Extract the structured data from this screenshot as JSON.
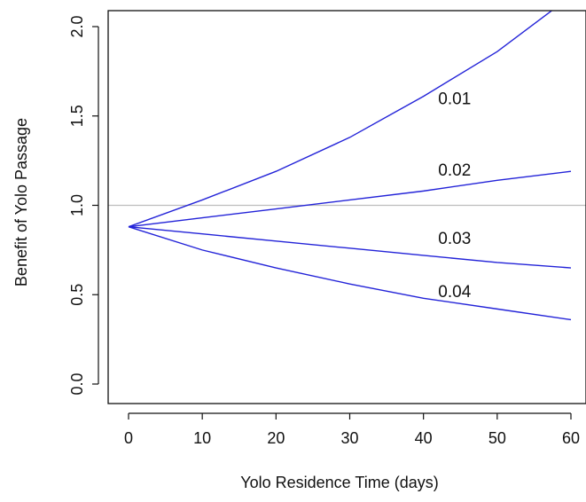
{
  "chart_data": {
    "type": "line",
    "title": "",
    "xlabel": "Yolo Residence Time (days)",
    "ylabel": "Benefit of Yolo Passage",
    "xlim": [
      0,
      60
    ],
    "ylim": [
      0,
      2
    ],
    "xticks": [
      0,
      10,
      20,
      30,
      40,
      50,
      60
    ],
    "yticks": [
      "0.0",
      "0.5",
      "1.0",
      "1.5",
      "2.0"
    ],
    "reference_line": {
      "y": 1.0,
      "color": "#bdbdbd"
    },
    "line_color": "#2323d8",
    "grid": false,
    "x": [
      0,
      10,
      20,
      30,
      40,
      50,
      60
    ],
    "series": [
      {
        "name": "0.01",
        "values": [
          0.88,
          1.03,
          1.19,
          1.38,
          1.61,
          1.86,
          2.17
        ]
      },
      {
        "name": "0.02",
        "values": [
          0.88,
          0.93,
          0.98,
          1.03,
          1.08,
          1.14,
          1.19
        ]
      },
      {
        "name": "0.03",
        "values": [
          0.88,
          0.84,
          0.8,
          0.76,
          0.72,
          0.68,
          0.65
        ]
      },
      {
        "name": "0.04",
        "values": [
          0.88,
          0.75,
          0.65,
          0.56,
          0.48,
          0.42,
          0.36
        ]
      }
    ],
    "label_x": [
      42,
      42,
      42,
      42
    ],
    "label_y": [
      1.6,
      1.2,
      0.82,
      0.52
    ]
  }
}
